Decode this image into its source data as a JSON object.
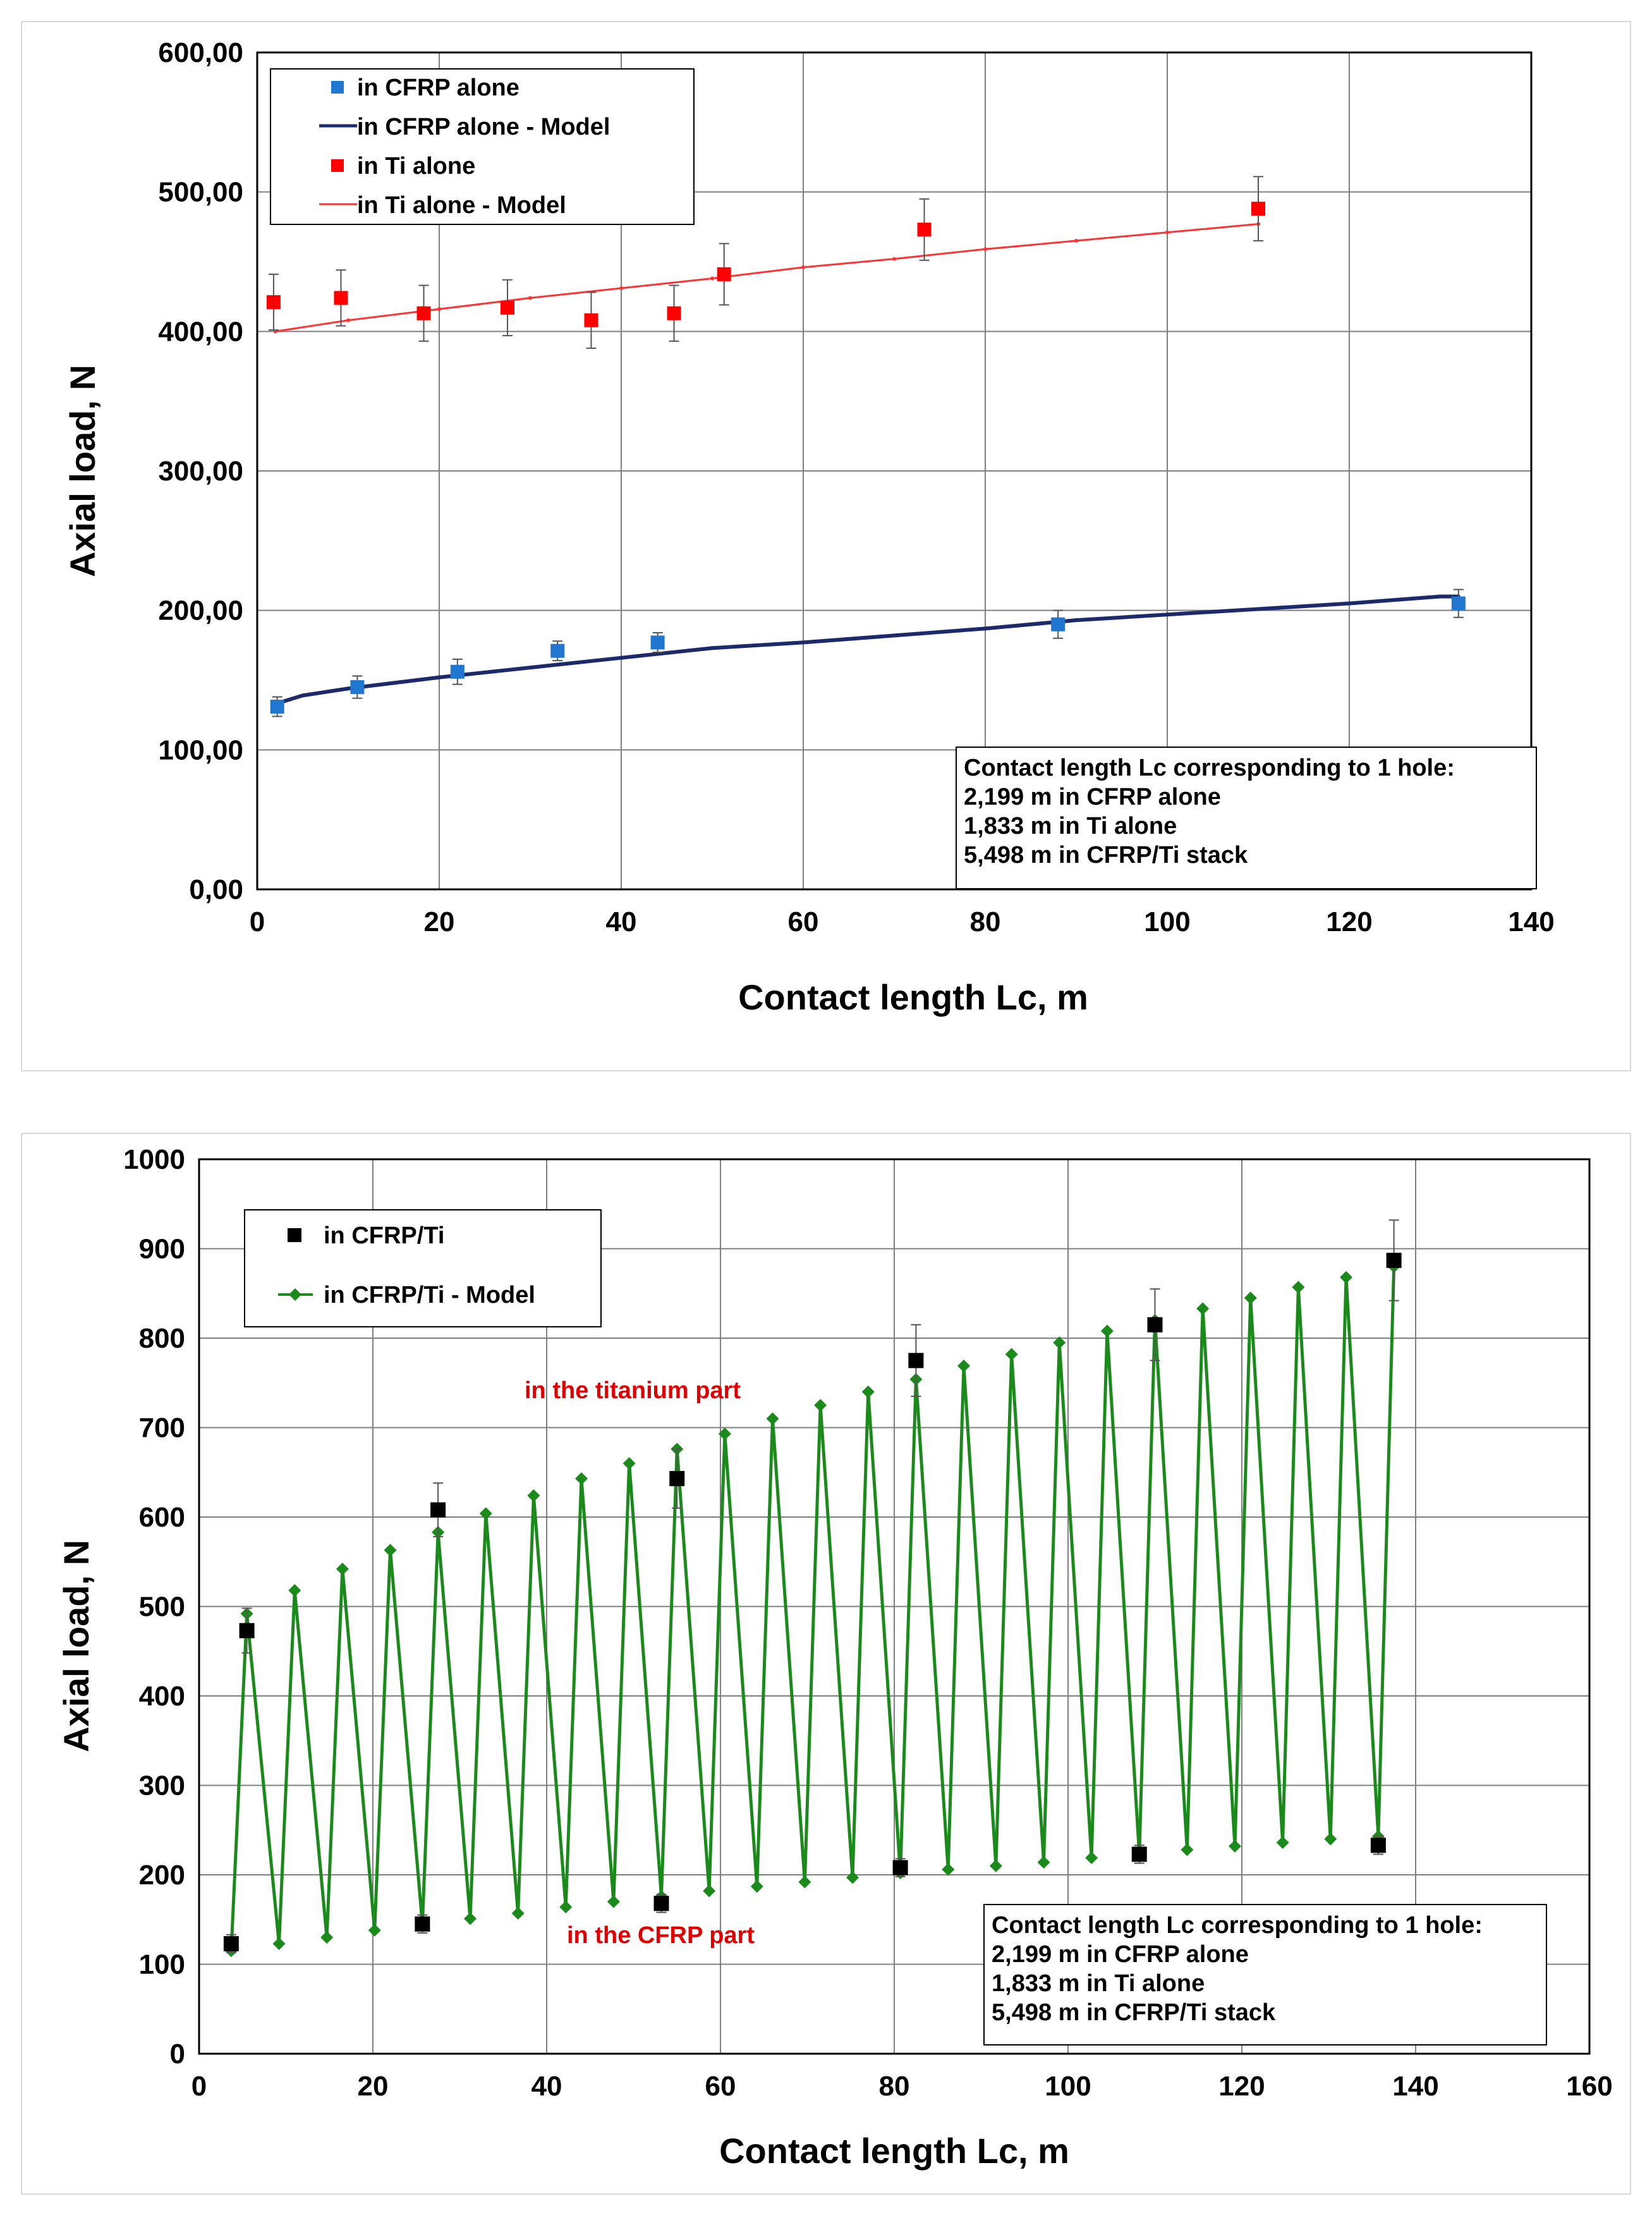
{
  "chart_data": [
    {
      "type": "scatter",
      "title": "",
      "xlabel": "Contact length Lc, m",
      "ylabel": "Axial load, N",
      "xlim": [
        0,
        140
      ],
      "ylim": [
        0,
        600
      ],
      "xticks": [
        "0",
        "20",
        "40",
        "60",
        "80",
        "100",
        "120",
        "140"
      ],
      "yticks": [
        "0,00",
        "100,00",
        "200,00",
        "300,00",
        "400,00",
        "500,00",
        "600,00"
      ],
      "grid": true,
      "legend_position": "top-left",
      "series": [
        {
          "name": "in CFRP alone",
          "kind": "points",
          "color": "#1f77d0",
          "marker": "square",
          "x": [
            2.2,
            11,
            22,
            33,
            44,
            88,
            132
          ],
          "y": [
            131,
            145,
            156,
            171,
            177,
            190,
            205
          ],
          "err": [
            7,
            8,
            9,
            7,
            7,
            10,
            10
          ]
        },
        {
          "name": "in CFRP alone - Model",
          "kind": "line",
          "color": "#1c2a6b",
          "x": [
            2,
            5,
            10,
            20,
            30,
            40,
            50,
            60,
            70,
            80,
            90,
            100,
            110,
            120,
            130,
            132
          ],
          "y": [
            133,
            139,
            144,
            152,
            159,
            166,
            173,
            177,
            182,
            187,
            193,
            197,
            201,
            205,
            210,
            210
          ]
        },
        {
          "name": "in Ti alone",
          "kind": "points",
          "color": "#ff0000",
          "marker": "square",
          "x": [
            1.8,
            9.2,
            18.3,
            27.5,
            36.7,
            45.8,
            51.3,
            73.3,
            110
          ],
          "y": [
            421,
            424,
            413,
            417,
            408,
            413,
            441,
            473,
            488
          ],
          "err": [
            20,
            20,
            20,
            20,
            20,
            20,
            22,
            22,
            23
          ]
        },
        {
          "name": "in Ti alone - Model",
          "kind": "line",
          "color": "#ff3333",
          "x": [
            2,
            10,
            20,
            30,
            40,
            50,
            60,
            70,
            80,
            90,
            100,
            110
          ],
          "y": [
            400,
            408,
            416,
            424,
            431,
            438,
            446,
            452,
            459,
            465,
            471,
            477
          ]
        }
      ],
      "note": {
        "lines": [
          "Contact length Lc corresponding to 1 hole:",
          "2,199 m in CFRP alone",
          "1,833 m  in  Ti alone",
          "5,498 m in CFRP/Ti stack"
        ]
      }
    },
    {
      "type": "line",
      "title": "",
      "xlabel": "Contact length Lc, m",
      "ylabel": "Axial load, N",
      "xlim": [
        0,
        160
      ],
      "ylim": [
        0,
        1000
      ],
      "xticks": [
        "0",
        "20",
        "40",
        "60",
        "80",
        "100",
        "120",
        "140",
        "160"
      ],
      "yticks": [
        "0",
        "100",
        "200",
        "300",
        "400",
        "500",
        "600",
        "700",
        "800",
        "900",
        "1000"
      ],
      "grid": true,
      "legend_position": "top-left",
      "series": [
        {
          "name": "in CFRP/Ti",
          "kind": "points",
          "color": "#000000",
          "marker": "square",
          "x": [
            3.7,
            5.5,
            25.7,
            27.5,
            53.2,
            55,
            80.7,
            82.5,
            108.2,
            110,
            135.7,
            137.5
          ],
          "y": [
            123,
            473,
            145,
            608,
            168,
            643,
            208,
            775,
            223,
            815,
            233,
            887
          ],
          "err": [
            10,
            25,
            10,
            30,
            10,
            33,
            10,
            40,
            10,
            40,
            10,
            45
          ]
        },
        {
          "name": "in CFRP/Ti - Model",
          "kind": "line",
          "color": "#1a8a1a",
          "marker": "diamond",
          "x": [
            3.7,
            5.5,
            9.2,
            11,
            14.7,
            16.5,
            20.2,
            22,
            25.7,
            27.5,
            31.2,
            33,
            36.7,
            38.5,
            42.2,
            44,
            47.7,
            49.5,
            53.2,
            55,
            58.7,
            60.5,
            64.2,
            66,
            69.7,
            71.5,
            75.2,
            77,
            80.7,
            82.5,
            86.2,
            88,
            91.7,
            93.5,
            97.2,
            99,
            102.7,
            104.5,
            108.2,
            110,
            113.7,
            115.5,
            119.2,
            121,
            124.7,
            126.5,
            130.2,
            132,
            135.7,
            137.5
          ],
          "y": [
            115,
            492,
            123,
            518,
            130,
            542,
            138,
            563,
            145,
            583,
            151,
            604,
            157,
            624,
            164,
            643,
            170,
            660,
            176,
            676,
            182,
            693,
            187,
            710,
            192,
            725,
            197,
            740,
            202,
            754,
            206,
            769,
            210,
            782,
            214,
            795,
            219,
            808,
            223,
            820,
            228,
            833,
            232,
            845,
            236,
            857,
            240,
            868,
            243,
            880
          ]
        }
      ],
      "annotations": [
        "in the titanium part",
        "in the CFRP part"
      ],
      "note": {
        "lines": [
          "Contact length Lc corresponding to 1 hole:",
          "2,199 m in CFRP alone",
          "1,833 m  in  Ti alone",
          "5,498 m in CFRP/Ti stack"
        ]
      }
    }
  ]
}
